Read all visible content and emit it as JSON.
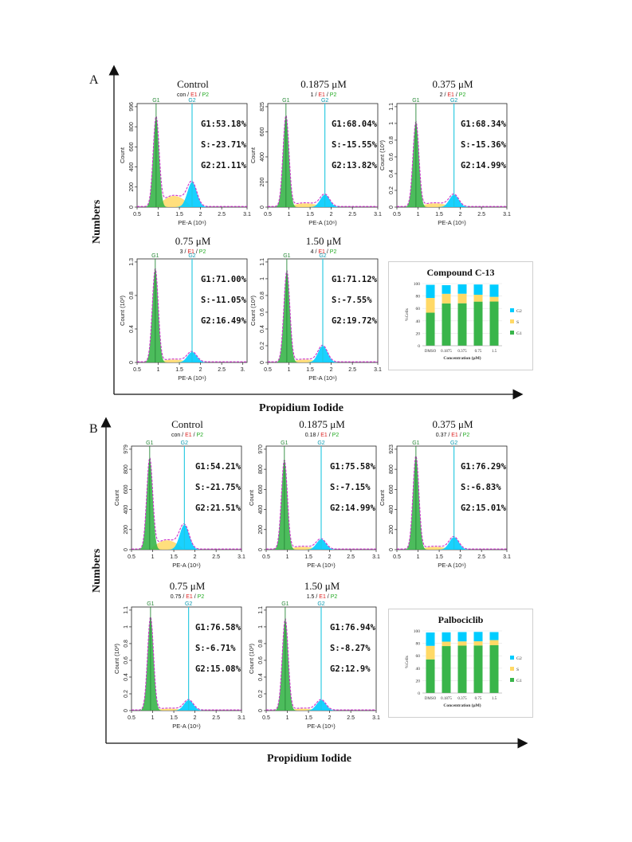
{
  "figure": {
    "panel_a": "A",
    "panel_b": "B",
    "y_axis_title": "Numbers",
    "x_axis_title": "Propidium Iodide"
  },
  "colors": {
    "g1": "#39b54a",
    "s": "#ffd966",
    "g2": "#00ccff",
    "g2_line": "#1fc7e0",
    "fit": "#cc33cc"
  },
  "chart_data": [
    {
      "type": "area",
      "panel": "A",
      "title": "Control",
      "gate": "con",
      "ymax_label": "996",
      "yticks": [
        "0",
        "200",
        "400",
        "600",
        "800",
        "996"
      ],
      "ylabel": "Count",
      "xlabel": "PE-A (10⁶)",
      "xticks": [
        "0.5",
        "1",
        "1.5",
        "2",
        "2.5",
        "3.1"
      ],
      "g1_pos": 0.95,
      "g2_pos": 1.8,
      "g1_height": 0.87,
      "g2_height": 0.24,
      "s_level": 0.12,
      "stats": {
        "g1": "G1:53.18%",
        "s": "S:-23.71%",
        "g2": "G2:21.11%"
      }
    },
    {
      "type": "area",
      "panel": "A",
      "title": "0.1875 μM",
      "gate": "1",
      "yticks": [
        "0",
        "200",
        "400",
        "600",
        "825"
      ],
      "ylabel": "Count",
      "xlabel": "PE-A (10⁶)",
      "xticks": [
        "0.5",
        "1",
        "1.5",
        "2",
        "2.5",
        "3.1"
      ],
      "g1_pos": 0.93,
      "g2_pos": 1.85,
      "g1_height": 0.88,
      "g2_height": 0.12,
      "s_level": 0.04,
      "stats": {
        "g1": "G1:68.04%",
        "s": "S:-15.55%",
        "g2": "G2:13.82%"
      }
    },
    {
      "type": "area",
      "panel": "A",
      "title": "0.375 μM",
      "gate": "2",
      "yticks": [
        "0",
        "0.2",
        "0.4",
        "0.6",
        "0.8",
        "1",
        "1.1"
      ],
      "ylabel": "Count (10³)",
      "xlabel": "PE-A (10⁶)",
      "xticks": [
        "0.5",
        "1",
        "1.5",
        "2",
        "2.5",
        "3.1"
      ],
      "g1_pos": 0.95,
      "g2_pos": 1.85,
      "g1_height": 0.82,
      "g2_height": 0.12,
      "s_level": 0.04,
      "stats": {
        "g1": "G1:68.34%",
        "s": "S:-15.36%",
        "g2": "G2:14.99%"
      }
    },
    {
      "type": "area",
      "panel": "A",
      "title": "0.75 μM",
      "gate": "3",
      "yticks": [
        "0",
        "0.4",
        "0.8",
        "1.3"
      ],
      "ylabel": "Count (10³)",
      "xlabel": "PE-A (10⁶)",
      "xticks": [
        "0.5",
        "1",
        "1.5",
        "2",
        "2.5",
        "3."
      ],
      "g1_pos": 0.93,
      "g2_pos": 1.8,
      "g1_height": 0.9,
      "g2_height": 0.1,
      "s_level": 0.03,
      "stats": {
        "g1": "G1:71.00%",
        "s": "S:-11.05%",
        "g2": "G2:16.49%"
      }
    },
    {
      "type": "area",
      "panel": "A",
      "title": "1.50 μM",
      "gate": "4",
      "yticks": [
        "0",
        "0.2",
        "0.4",
        "0.6",
        "0.8",
        "1",
        "1.1"
      ],
      "ylabel": "Count (10³)",
      "xlabel": "PE-A (10⁶)",
      "xticks": [
        "0.5",
        "1",
        "1.5",
        "2",
        "2.5",
        "3.1"
      ],
      "g1_pos": 0.95,
      "g2_pos": 1.8,
      "g1_height": 0.88,
      "g2_height": 0.16,
      "s_level": 0.03,
      "stats": {
        "g1": "G1:71.12%",
        "s": "S:-7.55%",
        "g2": "G2:19.72%"
      }
    },
    {
      "type": "bar",
      "panel": "A",
      "title": "Compound C-13",
      "categories": [
        "DMSO",
        "0.1875",
        "0.375",
        "0.75",
        "1.5"
      ],
      "series": [
        {
          "name": "G1",
          "values": [
            53.18,
            68.04,
            68.34,
            71.0,
            71.12
          ]
        },
        {
          "name": "S",
          "values": [
            23.71,
            15.55,
            15.36,
            11.05,
            7.55
          ]
        },
        {
          "name": "G2",
          "values": [
            21.11,
            13.82,
            14.99,
            16.49,
            19.72
          ]
        }
      ],
      "xlabel": "Concentration (μM)",
      "ylabel": "%Cells",
      "yticks": [
        "0",
        "20",
        "40",
        "60",
        "80",
        "100"
      ],
      "ylim": [
        0,
        100
      ]
    },
    {
      "type": "area",
      "panel": "B",
      "title": "Control",
      "gate": "con",
      "yticks": [
        "0",
        "200",
        "400",
        "600",
        "800",
        "979"
      ],
      "ylabel": "Count",
      "xlabel": "PE-A (10⁶)",
      "xticks": [
        "0.5",
        "1",
        "1.5",
        "2",
        "2.5",
        "3.1"
      ],
      "g1_pos": 0.93,
      "g2_pos": 1.75,
      "g1_height": 0.88,
      "g2_height": 0.24,
      "s_level": 0.1,
      "stats": {
        "g1": "G1:54.21%",
        "s": "S:-21.75%",
        "g2": "G2:21.51%"
      }
    },
    {
      "type": "area",
      "panel": "B",
      "title": "0.1875 μM",
      "gate": "0.18",
      "yticks": [
        "0",
        "200",
        "400",
        "600",
        "800",
        "970"
      ],
      "ylabel": "Count",
      "xlabel": "PE-A (10⁶)",
      "xticks": [
        "0.5",
        "1",
        "1.5",
        "2",
        "2.5",
        "3.1"
      ],
      "g1_pos": 0.93,
      "g2_pos": 1.8,
      "g1_height": 0.86,
      "g2_height": 0.1,
      "s_level": 0.03,
      "stats": {
        "g1": "G1:75.58%",
        "s": "S:-7.15%",
        "g2": "G2:14.99%"
      }
    },
    {
      "type": "area",
      "panel": "B",
      "title": "0.375 μM",
      "gate": "0.37",
      "yticks": [
        "0",
        "200",
        "400",
        "600",
        "800",
        "923"
      ],
      "ylabel": "Count",
      "xlabel": "PE-A (10⁶)",
      "xticks": [
        "0.5",
        "1",
        "1.5",
        "2",
        "2.5",
        "3.1"
      ],
      "g1_pos": 0.95,
      "g2_pos": 1.85,
      "g1_height": 0.9,
      "g2_height": 0.12,
      "s_level": 0.03,
      "stats": {
        "g1": "G1:76.29%",
        "s": "S:-6.83%",
        "g2": "G2:15.01%"
      }
    },
    {
      "type": "area",
      "panel": "B",
      "title": "0.75 μM",
      "gate": "0.75",
      "yticks": [
        "0",
        "0.2",
        "0.4",
        "0.6",
        "0.8",
        "1",
        "1.1"
      ],
      "ylabel": "Count (10³)",
      "xlabel": "PE-A (10⁶)",
      "xticks": [
        "0.5",
        "1",
        "1.5",
        "2",
        "2.5",
        "3.1"
      ],
      "g1_pos": 0.95,
      "g2_pos": 1.85,
      "g1_height": 0.9,
      "g2_height": 0.1,
      "s_level": 0.02,
      "stats": {
        "g1": "G1:76.58%",
        "s": "S:-6.71%",
        "g2": "G2:15.08%"
      }
    },
    {
      "type": "area",
      "panel": "B",
      "title": "1.50 μM",
      "gate": "1.5",
      "yticks": [
        "0",
        "0.2",
        "0.4",
        "0.6",
        "0.8",
        "1",
        "1.1"
      ],
      "ylabel": "Count (10³)",
      "xlabel": "PE-A (10⁶)",
      "xticks": [
        "0.5",
        "1",
        "1.5",
        "2",
        "2.5",
        "3.1"
      ],
      "g1_pos": 0.95,
      "g2_pos": 1.8,
      "g1_height": 0.88,
      "g2_height": 0.1,
      "s_level": 0.02,
      "stats": {
        "g1": "G1:76.94%",
        "s": "S:-8.27%",
        "g2": "G2:12.9%"
      }
    },
    {
      "type": "bar",
      "panel": "B",
      "title": "Palbociclib",
      "categories": [
        "DMSO",
        "0.1875",
        "0.375",
        "0.75",
        "1.5"
      ],
      "series": [
        {
          "name": "G1",
          "values": [
            54.21,
            75.58,
            76.29,
            76.58,
            76.94
          ]
        },
        {
          "name": "S",
          "values": [
            21.75,
            7.15,
            6.83,
            6.71,
            8.27
          ]
        },
        {
          "name": "G2",
          "values": [
            21.51,
            14.99,
            15.01,
            15.08,
            12.9
          ]
        }
      ],
      "xlabel": "Concentration (μM)",
      "ylabel": "%Cells",
      "yticks": [
        "0",
        "20",
        "40",
        "60",
        "80",
        "100"
      ],
      "ylim": [
        0,
        100
      ]
    }
  ]
}
